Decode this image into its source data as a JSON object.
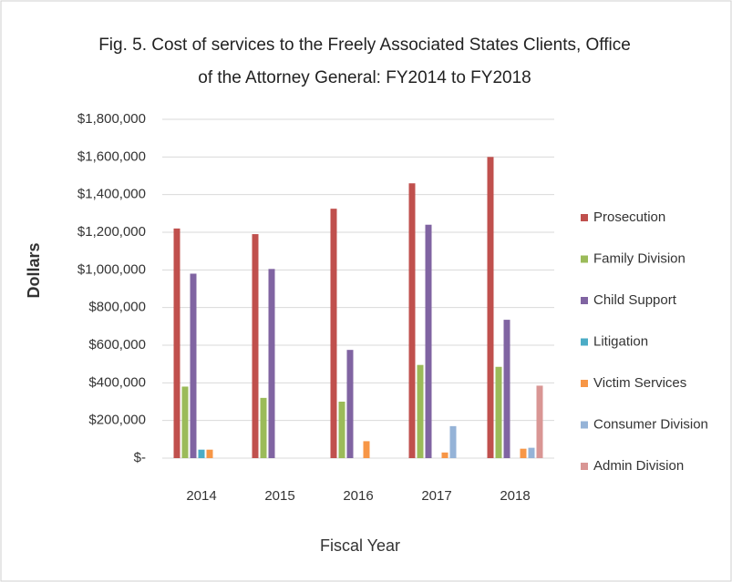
{
  "chart_data": {
    "type": "bar",
    "title": [
      "Fig. 5. Cost of services to the Freely Associated States Clients, Office",
      "of the Attorney General: FY2014 to FY2018"
    ],
    "x_label": "Fiscal Year",
    "y_label": "Dollars",
    "categories": [
      "2014",
      "2015",
      "2016",
      "2017",
      "2018"
    ],
    "series": [
      {
        "name": "Prosecution",
        "color": "#c0504d",
        "values": [
          1220000,
          1190000,
          1325000,
          1460000,
          1600000
        ]
      },
      {
        "name": "Family Division",
        "color": "#9bbb59",
        "values": [
          380000,
          320000,
          300000,
          495000,
          485000
        ]
      },
      {
        "name": "Child Support",
        "color": "#8064a2",
        "values": [
          980000,
          1005000,
          575000,
          1240000,
          735000
        ]
      },
      {
        "name": "Litigation",
        "color": "#4bacc6",
        "values": [
          45000,
          0,
          0,
          0,
          0
        ]
      },
      {
        "name": "Victim Services",
        "color": "#f79646",
        "values": [
          45000,
          0,
          90000,
          30000,
          50000
        ]
      },
      {
        "name": "Consumer Division",
        "color": "#95b3d7",
        "values": [
          0,
          0,
          0,
          170000,
          55000
        ]
      },
      {
        "name": "Admin Division",
        "color": "#d99694",
        "values": [
          0,
          0,
          0,
          0,
          385000
        ]
      }
    ],
    "ylim": [
      0,
      1800000
    ],
    "yticks": [
      {
        "value": 0,
        "label": "$-"
      },
      {
        "value": 200000,
        "label": "$200,000"
      },
      {
        "value": 400000,
        "label": "$400,000"
      },
      {
        "value": 600000,
        "label": "$600,000"
      },
      {
        "value": 800000,
        "label": "$800,000"
      },
      {
        "value": 1000000,
        "label": "$1,000,000"
      },
      {
        "value": 1200000,
        "label": "$1,200,000"
      },
      {
        "value": 1400000,
        "label": "$1,400,000"
      },
      {
        "value": 1600000,
        "label": "$1,600,000"
      },
      {
        "value": 1800000,
        "label": "$1,800,000"
      }
    ],
    "grid": true,
    "legend": "right"
  }
}
